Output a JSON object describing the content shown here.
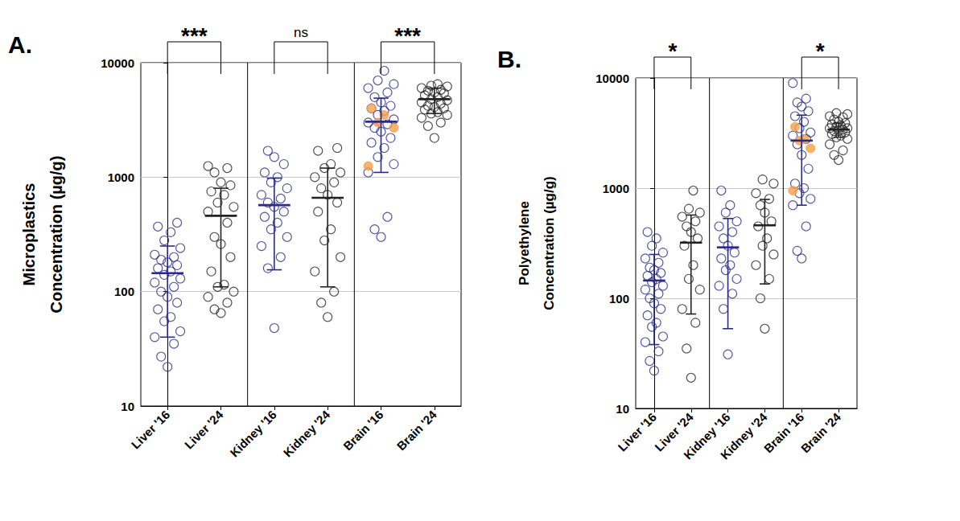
{
  "chart_data": [
    {
      "type": "scatter",
      "title": "A.",
      "y_label": "Microplastics\nConcentration (µg/g)",
      "log": "y",
      "grid": true,
      "marker": "circle",
      "ylim": [
        10,
        10000
      ],
      "yticks": [
        10,
        100,
        1000,
        10000
      ],
      "categories": [
        "Liver '16",
        "Liver '24",
        "Kidney '16",
        "Kidney '24",
        "Brain '16",
        "Brain '24"
      ],
      "groups": [
        {
          "category": "Liver '16",
          "color": "#2b2b86",
          "mean": 145,
          "error_bar": [
            40,
            250
          ],
          "values": [
            22,
            27,
            35,
            40,
            45,
            55,
            60,
            70,
            80,
            90,
            100,
            110,
            120,
            130,
            140,
            150,
            160,
            170,
            180,
            190,
            200,
            210,
            240,
            280,
            330,
            370,
            400
          ]
        },
        {
          "category": "Liver '24",
          "color": "#222222",
          "mean": 460,
          "error_bar": [
            110,
            800
          ],
          "values": [
            65,
            70,
            80,
            90,
            100,
            110,
            115,
            150,
            200,
            260,
            300,
            400,
            500,
            550,
            600,
            700,
            750,
            850,
            900,
            1100,
            1200,
            1250
          ]
        },
        {
          "category": "Kidney '16",
          "color": "#2b2b86",
          "mean": 570,
          "error_bar": [
            155,
            980
          ],
          "values": [
            48,
            160,
            200,
            250,
            300,
            350,
            400,
            450,
            500,
            550,
            600,
            650,
            700,
            800,
            900,
            1000,
            1100,
            1300,
            1500,
            1700
          ]
        },
        {
          "category": "Kidney '24",
          "color": "#222222",
          "mean": 660,
          "error_bar": [
            110,
            1200
          ],
          "values": [
            60,
            80,
            100,
            150,
            200,
            280,
            350,
            500,
            600,
            700,
            800,
            900,
            1000,
            1100,
            1200,
            1300,
            1700,
            1800
          ]
        },
        {
          "category": "Brain '16",
          "color": "#2b2b86",
          "mean": 3050,
          "error_bar": [
            1100,
            4900
          ],
          "values": [
            300,
            350,
            450,
            1100,
            1300,
            1500,
            1800,
            2000,
            2200,
            2500,
            2700,
            2900,
            3000,
            3200,
            3500,
            3800,
            4000,
            4200,
            4500,
            5000,
            5500,
            6000,
            6500,
            7000,
            8500
          ],
          "highlight": {
            "color": "#f5a04a",
            "values": [
              1250,
              2700,
              3000,
              3500,
              4000
            ]
          }
        },
        {
          "category": "Brain '24",
          "color": "#222222",
          "mean": 4800,
          "error_bar": [
            3600,
            6000
          ],
          "values": [
            2200,
            2800,
            3000,
            3300,
            3500,
            3600,
            3700,
            3900,
            4000,
            4100,
            4200,
            4400,
            4500,
            4700,
            4800,
            5000,
            5200,
            5400,
            5500,
            5700,
            5800,
            6000,
            6200,
            6300,
            6500
          ]
        }
      ],
      "comparisons": [
        {
          "categories": [
            "Liver '16",
            "Liver '24"
          ],
          "label": "***"
        },
        {
          "categories": [
            "Kidney '16",
            "Kidney '24"
          ],
          "label": "ns"
        },
        {
          "categories": [
            "Brain '16",
            "Brain '24"
          ],
          "label": "***"
        }
      ]
    },
    {
      "type": "scatter",
      "title": "B.",
      "y_label": "Polyethylene\nConcentration (µg/g)",
      "log": "y",
      "grid": true,
      "marker": "circle",
      "ylim": [
        10,
        10000
      ],
      "yticks": [
        10,
        100,
        1000,
        10000
      ],
      "categories": [
        "Liver '16",
        "Liver '24",
        "Kidney '16",
        "Kidney '24",
        "Brain '16",
        "Brain '24"
      ],
      "groups": [
        {
          "category": "Liver '16",
          "color": "#2b2b86",
          "mean": 145,
          "error_bar": [
            38,
            250
          ],
          "values": [
            22,
            27,
            33,
            40,
            45,
            55,
            60,
            70,
            80,
            90,
            100,
            110,
            120,
            130,
            140,
            150,
            160,
            170,
            180,
            190,
            210,
            230,
            260,
            300,
            350,
            400
          ]
        },
        {
          "category": "Liver '24",
          "color": "#222222",
          "mean": 320,
          "error_bar": [
            72,
            570
          ],
          "values": [
            19,
            35,
            60,
            80,
            120,
            150,
            200,
            300,
            350,
            400,
            450,
            500,
            550,
            600,
            650,
            950
          ]
        },
        {
          "category": "Kidney '16",
          "color": "#2b2b86",
          "mean": 290,
          "error_bar": [
            53,
            530
          ],
          "values": [
            31,
            80,
            110,
            130,
            150,
            180,
            200,
            230,
            260,
            300,
            350,
            400,
            450,
            500,
            600,
            700,
            950
          ]
        },
        {
          "category": "Kidney '24",
          "color": "#222222",
          "mean": 460,
          "error_bar": [
            135,
            790
          ],
          "values": [
            53,
            100,
            150,
            200,
            250,
            300,
            350,
            450,
            500,
            600,
            700,
            800,
            900,
            1100,
            1200
          ]
        },
        {
          "category": "Brain '16",
          "color": "#2b2b86",
          "mean": 2700,
          "error_bar": [
            700,
            4600
          ],
          "values": [
            230,
            270,
            450,
            700,
            800,
            900,
            1000,
            1100,
            1500,
            2000,
            2500,
            2800,
            3000,
            3200,
            3500,
            4000,
            4500,
            5000,
            5500,
            6000,
            6500,
            9000
          ],
          "highlight": {
            "color": "#f5a04a",
            "values": [
              950,
              2300,
              2700,
              2800,
              3600
            ]
          }
        },
        {
          "category": "Brain '24",
          "color": "#222222",
          "mean": 3400,
          "error_bar": [
            2900,
            3900
          ],
          "values": [
            1800,
            2000,
            2200,
            2500,
            2800,
            2900,
            3000,
            3100,
            3200,
            3300,
            3300,
            3400,
            3500,
            3500,
            3600,
            3700,
            3800,
            3900,
            4000,
            4200,
            4400,
            4500,
            4700,
            4800
          ]
        }
      ],
      "comparisons": [
        {
          "categories": [
            "Liver '16",
            "Liver '24"
          ],
          "label": "*"
        },
        {
          "categories": [
            "Brain '16",
            "Brain '24"
          ],
          "label": "*"
        }
      ]
    }
  ]
}
